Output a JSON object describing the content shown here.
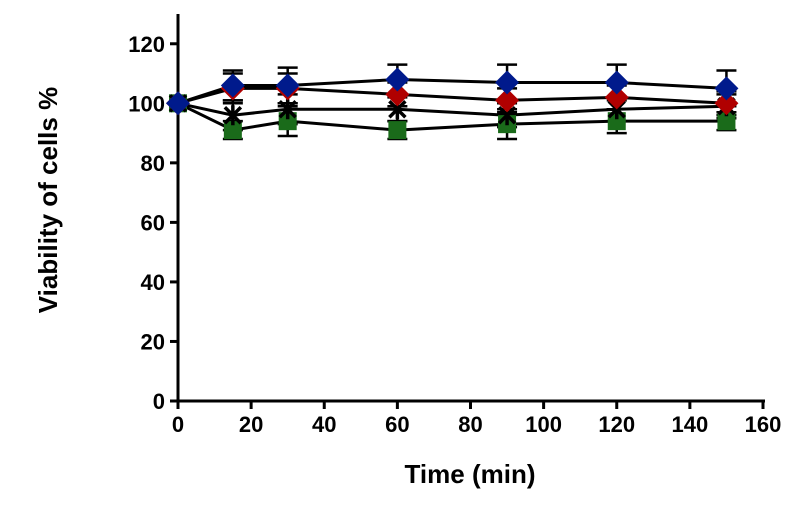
{
  "chart_data": {
    "type": "line",
    "title": "",
    "xlabel": "Time (min)",
    "ylabel": "Viability of cells %",
    "xlim": [
      0,
      160
    ],
    "ylim": [
      0,
      130
    ],
    "xticks": [
      0,
      20,
      40,
      60,
      80,
      100,
      120,
      140,
      160
    ],
    "yticks": [
      0,
      20,
      40,
      60,
      80,
      100,
      120
    ],
    "grid": false,
    "legend": "none",
    "x": [
      0,
      15,
      30,
      60,
      90,
      120,
      150
    ],
    "series": [
      {
        "marker": "diamond",
        "color": "#001a8c",
        "values": [
          100,
          106,
          106,
          108,
          107,
          107,
          105
        ],
        "error": [
          0,
          5,
          6,
          5,
          6,
          6,
          6
        ]
      },
      {
        "marker": "diamond",
        "color": "#b00000",
        "values": [
          100,
          105,
          105,
          103,
          101,
          102,
          100
        ],
        "error": [
          0,
          5,
          5,
          4,
          4,
          4,
          4
        ]
      },
      {
        "marker": "star",
        "color": "#000000",
        "values": [
          100,
          96,
          98,
          98,
          96,
          98,
          99
        ],
        "error": [
          0,
          5,
          5,
          4,
          4,
          4,
          4
        ]
      },
      {
        "marker": "square",
        "color": "#1a6b1a",
        "values": [
          100,
          91,
          94,
          91,
          93,
          94,
          94
        ],
        "error": [
          0,
          3,
          5,
          3,
          5,
          4,
          3
        ]
      }
    ]
  }
}
